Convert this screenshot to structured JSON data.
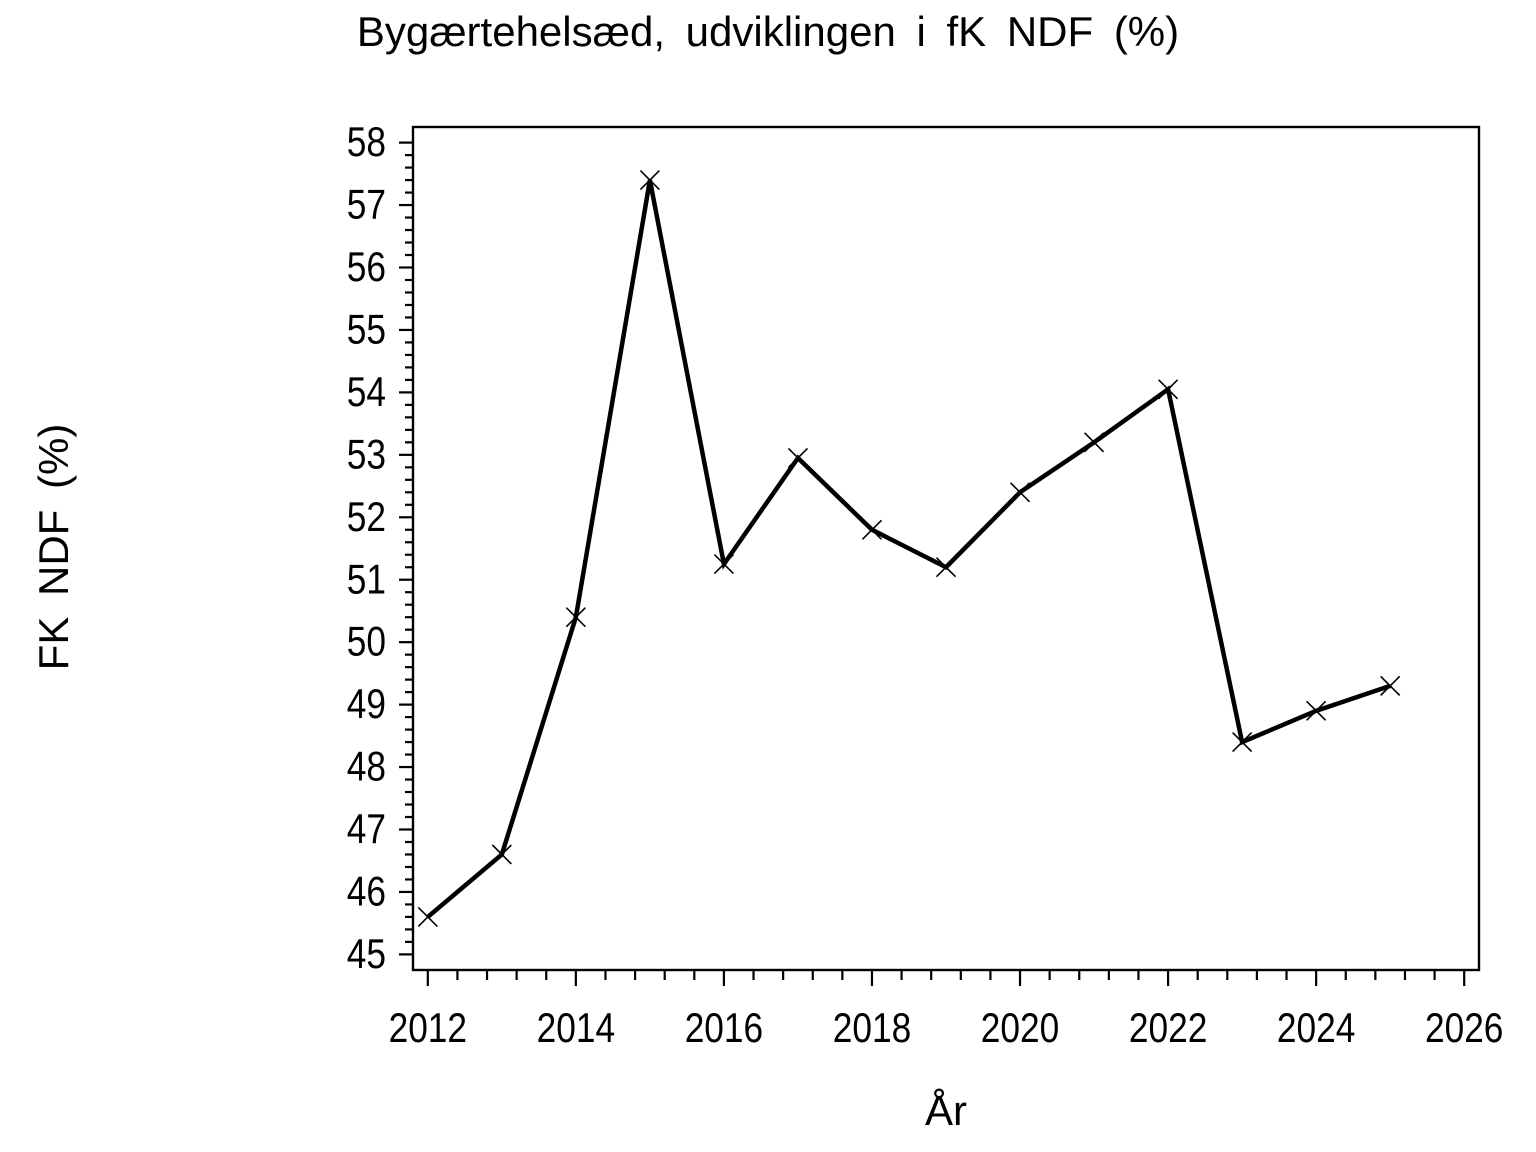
{
  "chart_data": {
    "type": "line",
    "title": "Bygærtehelsæd,  udviklingen  i  fK  NDF  (%)",
    "xlabel": "År",
    "ylabel": "FK  NDF  (%)",
    "x": [
      2012,
      2013,
      2014,
      2015,
      2016,
      2017,
      2018,
      2019,
      2020,
      2021,
      2022,
      2023,
      2024,
      2025
    ],
    "y": [
      45.6,
      46.6,
      50.4,
      57.4,
      51.25,
      52.95,
      51.8,
      51.2,
      52.4,
      53.2,
      54.05,
      48.4,
      48.9,
      49.3
    ],
    "xlim": [
      2011.8,
      2026.2
    ],
    "ylim": [
      44.75,
      58.25
    ],
    "x_major_ticks": [
      2012,
      2014,
      2016,
      2018,
      2020,
      2022,
      2024,
      2026
    ],
    "x_minor_step": 0.4,
    "y_major_ticks": [
      45,
      46,
      47,
      48,
      49,
      50,
      51,
      52,
      53,
      54,
      55,
      56,
      57,
      58
    ],
    "y_minor_step": 0.2,
    "grid": false,
    "legend": "none",
    "marker": "x",
    "line_color": "#000000",
    "text_color": "#000000",
    "background_color": "#ffffff"
  }
}
